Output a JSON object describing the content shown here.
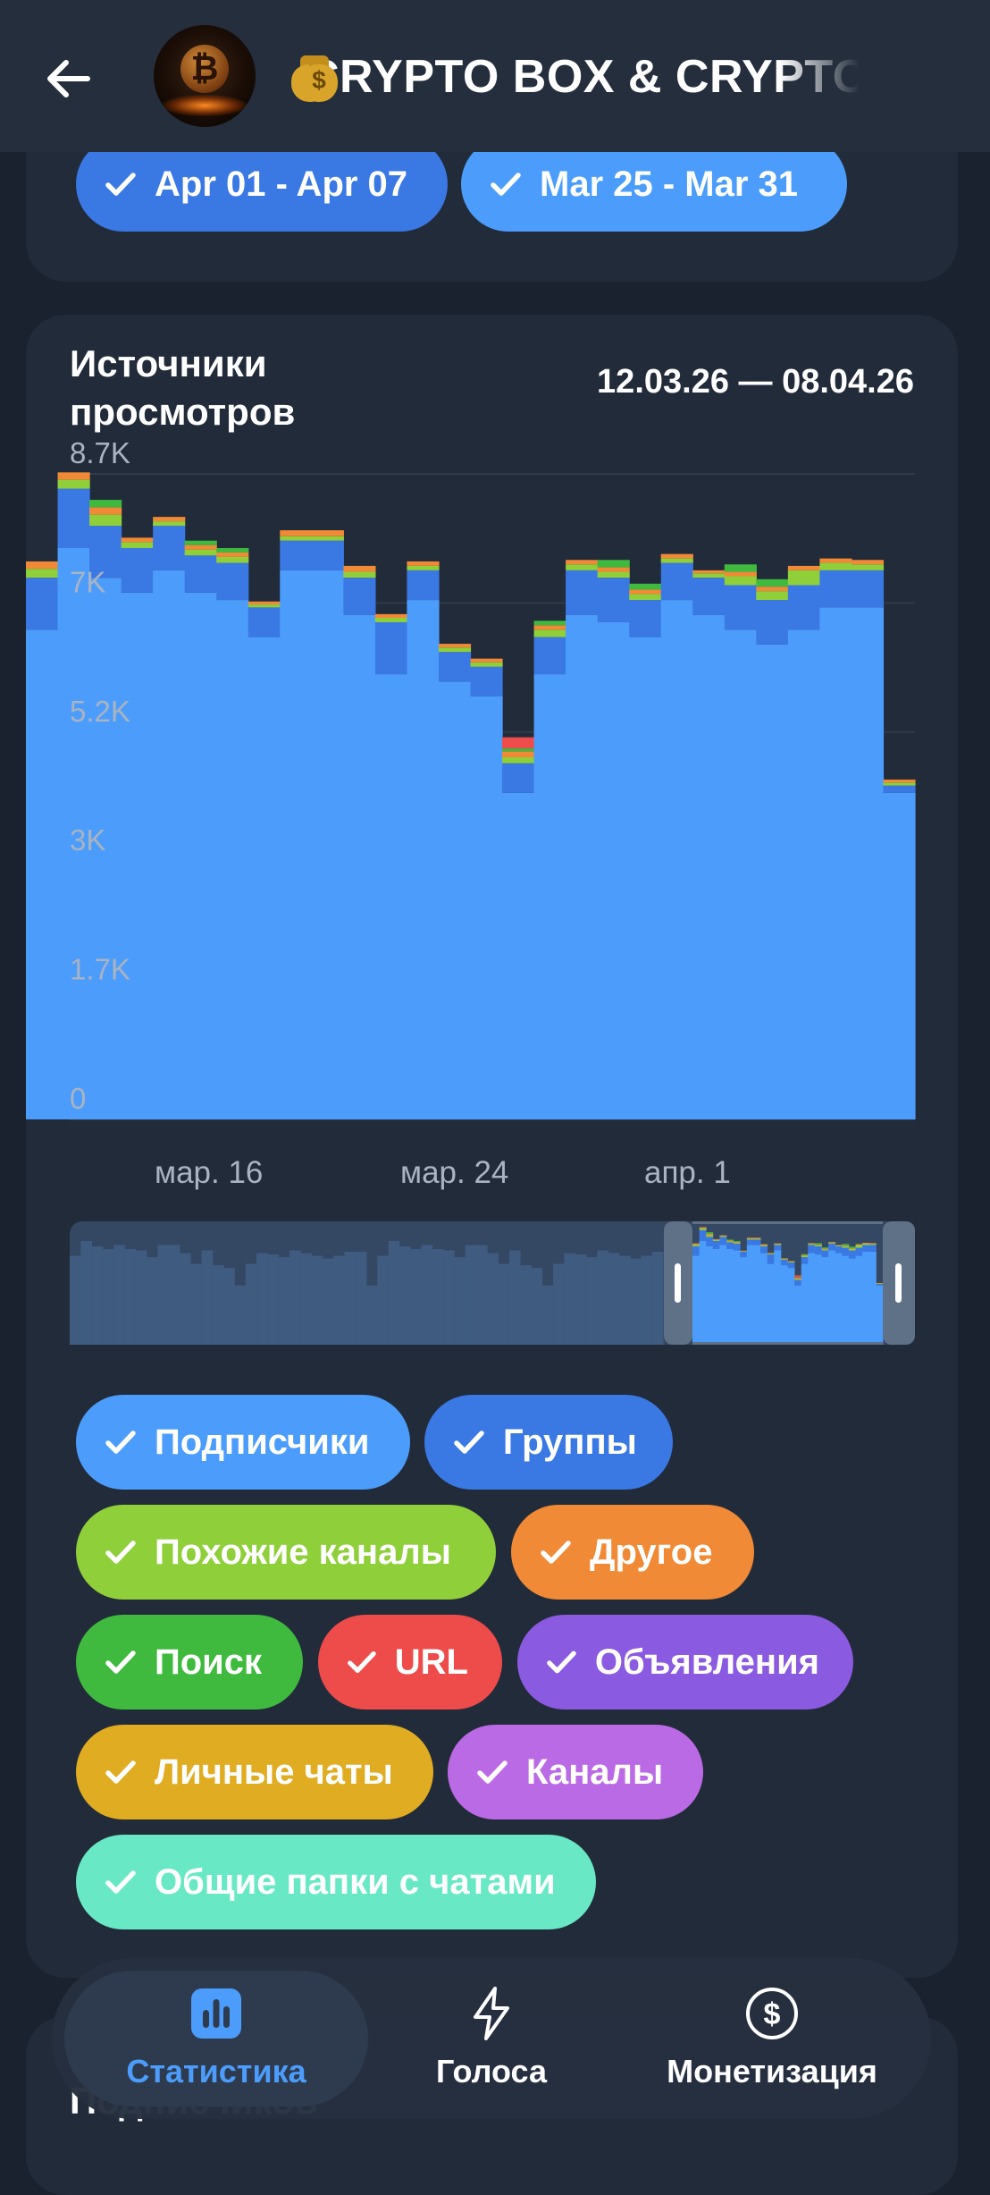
{
  "header": {
    "title": "CRYPTO BOX & CRYPTO",
    "avatar_symbol": "₿",
    "emoji_icons": [
      "money-bag-icon",
      "money-bag-icon"
    ]
  },
  "period_chips": [
    {
      "label": "Apr 01 - Apr 07",
      "color": "#3a78e4"
    },
    {
      "label": "Mar 25 - Mar 31",
      "color": "#4c9dfb"
    }
  ],
  "chart": {
    "title": "Источники просмотров",
    "date_range": "12.03.26 — 08.04.26"
  },
  "chart_data": {
    "type": "area",
    "stacked": true,
    "title": "Источники просмотров",
    "ylim": [
      0,
      8700
    ],
    "y_ticks": [
      "0",
      "1.7K",
      "3K",
      "5.2K",
      "7K",
      "8.7K"
    ],
    "x_ticks": [
      "мар. 16",
      "мар. 24",
      "апр. 1"
    ],
    "grid": true,
    "categories": [
      "12.03",
      "13.03",
      "14.03",
      "15.03",
      "16.03",
      "17.03",
      "18.03",
      "19.03",
      "20.03",
      "21.03",
      "22.03",
      "23.03",
      "24.03",
      "25.03",
      "26.03",
      "27.03",
      "28.03",
      "29.03",
      "30.03",
      "31.03",
      "01.04",
      "02.04",
      "03.04",
      "04.04",
      "05.04",
      "06.04",
      "07.04",
      "08.04"
    ],
    "series": [
      {
        "name": "Подписчики",
        "color": "#4c9dfb",
        "values": [
          6600,
          7700,
          7300,
          7100,
          7400,
          7100,
          7000,
          6500,
          7400,
          7400,
          6800,
          6000,
          7000,
          5900,
          5700,
          4400,
          6000,
          6800,
          6700,
          6500,
          7000,
          6800,
          6600,
          6400,
          6600,
          6900,
          6900,
          4400
        ]
      },
      {
        "name": "Группы",
        "color": "#3a78e4",
        "values": [
          700,
          800,
          700,
          600,
          600,
          500,
          500,
          400,
          400,
          400,
          500,
          700,
          400,
          400,
          400,
          400,
          500,
          600,
          600,
          500,
          500,
          500,
          600,
          600,
          600,
          500,
          500,
          100
        ]
      },
      {
        "name": "Похожие каналы",
        "color": "#8fcf3a",
        "values": [
          120,
          120,
          150,
          80,
          60,
          80,
          80,
          40,
          60,
          60,
          80,
          60,
          60,
          60,
          60,
          80,
          100,
          80,
          80,
          80,
          60,
          60,
          120,
          120,
          200,
          100,
          80,
          40
        ]
      },
      {
        "name": "Другое",
        "color": "#f08a36",
        "values": [
          100,
          100,
          100,
          60,
          60,
          60,
          60,
          40,
          80,
          80,
          80,
          50,
          60,
          50,
          50,
          80,
          60,
          60,
          60,
          60,
          60,
          40,
          60,
          60,
          60,
          60,
          60,
          40
        ]
      },
      {
        "name": "Поиск",
        "color": "#3fba3f",
        "values": [
          0,
          0,
          100,
          0,
          0,
          60,
          60,
          0,
          0,
          0,
          0,
          0,
          0,
          0,
          0,
          40,
          60,
          0,
          100,
          80,
          0,
          0,
          100,
          100,
          0,
          0,
          0,
          0
        ]
      },
      {
        "name": "URL",
        "color": "#ee4b4b",
        "values": [
          0,
          0,
          0,
          0,
          0,
          0,
          0,
          0,
          0,
          0,
          0,
          0,
          0,
          0,
          0,
          150,
          0,
          0,
          0,
          0,
          0,
          0,
          0,
          0,
          0,
          0,
          0,
          0
        ]
      },
      {
        "name": "Объявления",
        "color": "#8a5ae0",
        "values": [
          0,
          0,
          0,
          0,
          0,
          0,
          0,
          0,
          0,
          0,
          0,
          0,
          0,
          0,
          0,
          0,
          0,
          0,
          0,
          0,
          0,
          0,
          0,
          0,
          0,
          0,
          0,
          0
        ]
      },
      {
        "name": "Личные чаты",
        "color": "#e0ac22",
        "values": [
          0,
          0,
          0,
          0,
          0,
          0,
          0,
          0,
          0,
          0,
          0,
          0,
          0,
          0,
          0,
          0,
          0,
          0,
          0,
          0,
          0,
          0,
          0,
          0,
          0,
          0,
          0,
          0
        ]
      },
      {
        "name": "Каналы",
        "color": "#bb6ae6",
        "values": [
          0,
          0,
          0,
          0,
          0,
          0,
          0,
          0,
          0,
          0,
          0,
          0,
          0,
          0,
          0,
          0,
          0,
          0,
          0,
          0,
          0,
          0,
          0,
          0,
          0,
          0,
          0,
          0
        ]
      },
      {
        "name": "Общие папки с чатами",
        "color": "#69e8c6",
        "values": [
          0,
          0,
          0,
          0,
          0,
          0,
          0,
          0,
          0,
          0,
          0,
          0,
          0,
          0,
          0,
          0,
          0,
          0,
          0,
          0,
          0,
          0,
          0,
          0,
          0,
          0,
          0,
          0
        ]
      }
    ]
  },
  "source_chips": [
    {
      "label": "Подписчики",
      "color": "#4c9dfb"
    },
    {
      "label": "Группы",
      "color": "#3a78e4"
    },
    {
      "label": "Похожие каналы",
      "color": "#8fcf3a"
    },
    {
      "label": "Другое",
      "color": "#f08a36"
    },
    {
      "label": "Поиск",
      "color": "#3fba3f"
    },
    {
      "label": "URL",
      "color": "#ee4b4b"
    },
    {
      "label": "Объявления",
      "color": "#8a5ae0"
    },
    {
      "label": "Личные чаты",
      "color": "#e0ac22"
    },
    {
      "label": "Каналы",
      "color": "#bb6ae6"
    },
    {
      "label": "Общие папки с чатами",
      "color": "#69e8c6"
    }
  ],
  "bottom_nav": [
    {
      "label": "Статистика",
      "icon": "bar-chart-icon",
      "active": true
    },
    {
      "label": "Голоса",
      "icon": "lightning-icon",
      "active": false
    },
    {
      "label": "Монетизация",
      "icon": "dollar-coin-icon",
      "active": false
    }
  ],
  "next_section": {
    "title": "Подписчиков"
  }
}
